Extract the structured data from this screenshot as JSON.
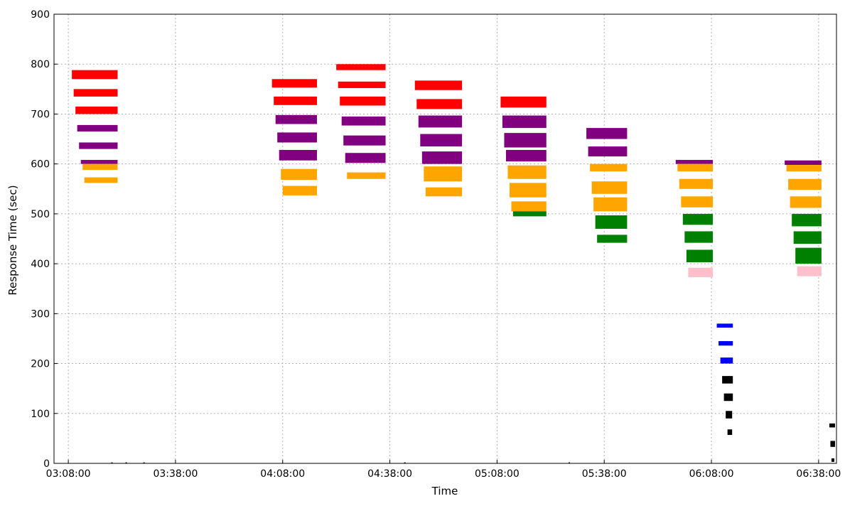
{
  "chart_data": {
    "type": "scatter",
    "title": "",
    "xlabel": "Time",
    "ylabel": "Response Time (sec)",
    "x_ticks": [
      "03:08:00",
      "03:38:00",
      "04:08:00",
      "04:38:00",
      "05:08:00",
      "05:38:00",
      "06:08:00",
      "06:38:00"
    ],
    "x_tick_minutes": [
      188,
      218,
      248,
      278,
      308,
      338,
      368,
      398
    ],
    "xlim_minutes": [
      184,
      403
    ],
    "y_ticks": [
      0,
      100,
      200,
      300,
      400,
      500,
      600,
      700,
      800,
      900
    ],
    "ylim": [
      0,
      900
    ],
    "grid": true,
    "legend": "none",
    "colors": {
      "red": "#ff0000",
      "purple": "#800080",
      "orange": "#ffa500",
      "green": "#008000",
      "pink": "#ffc0cb",
      "blue": "#0000ff",
      "black": "#000000"
    },
    "segments": [
      {
        "color": "red",
        "x0": 189.0,
        "x1": 201.8,
        "y0": 770,
        "y1": 788
      },
      {
        "color": "red",
        "x0": 189.5,
        "x1": 201.8,
        "y0": 735,
        "y1": 750
      },
      {
        "color": "red",
        "x0": 190.0,
        "x1": 201.8,
        "y0": 700,
        "y1": 715
      },
      {
        "color": "purple",
        "x0": 190.5,
        "x1": 201.8,
        "y0": 665,
        "y1": 678
      },
      {
        "color": "purple",
        "x0": 191.0,
        "x1": 201.8,
        "y0": 630,
        "y1": 643
      },
      {
        "color": "purple",
        "x0": 191.5,
        "x1": 201.8,
        "y0": 600,
        "y1": 608
      },
      {
        "color": "orange",
        "x0": 192.0,
        "x1": 201.8,
        "y0": 588,
        "y1": 600
      },
      {
        "color": "orange",
        "x0": 192.5,
        "x1": 201.8,
        "y0": 562,
        "y1": 573
      },
      {
        "color": "black",
        "x0": 200.0,
        "x1": 200.4,
        "y0": 0,
        "y1": 2
      },
      {
        "color": "black",
        "x0": 204.0,
        "x1": 204.4,
        "y0": 0,
        "y1": 2
      },
      {
        "color": "black",
        "x0": 209.0,
        "x1": 209.4,
        "y0": 0,
        "y1": 2
      },
      {
        "color": "red",
        "x0": 245.0,
        "x1": 257.6,
        "y0": 753,
        "y1": 770
      },
      {
        "color": "red",
        "x0": 245.5,
        "x1": 257.6,
        "y0": 718,
        "y1": 735
      },
      {
        "color": "purple",
        "x0": 246.0,
        "x1": 257.6,
        "y0": 680,
        "y1": 698
      },
      {
        "color": "purple",
        "x0": 246.5,
        "x1": 257.6,
        "y0": 643,
        "y1": 663
      },
      {
        "color": "purple",
        "x0": 247.0,
        "x1": 257.6,
        "y0": 607,
        "y1": 628
      },
      {
        "color": "orange",
        "x0": 247.5,
        "x1": 257.6,
        "y0": 568,
        "y1": 590
      },
      {
        "color": "orange",
        "x0": 248.0,
        "x1": 257.6,
        "y0": 537,
        "y1": 556
      },
      {
        "color": "red",
        "x0": 263.0,
        "x1": 276.8,
        "y0": 788,
        "y1": 800
      },
      {
        "color": "red",
        "x0": 263.5,
        "x1": 276.8,
        "y0": 752,
        "y1": 765
      },
      {
        "color": "red",
        "x0": 264.0,
        "x1": 276.8,
        "y0": 717,
        "y1": 735
      },
      {
        "color": "purple",
        "x0": 264.5,
        "x1": 276.8,
        "y0": 677,
        "y1": 695
      },
      {
        "color": "purple",
        "x0": 265.0,
        "x1": 276.8,
        "y0": 637,
        "y1": 657
      },
      {
        "color": "purple",
        "x0": 265.5,
        "x1": 276.8,
        "y0": 602,
        "y1": 622
      },
      {
        "color": "orange",
        "x0": 266.0,
        "x1": 276.8,
        "y0": 570,
        "y1": 583
      },
      {
        "color": "black",
        "x0": 282.0,
        "x1": 282.4,
        "y0": 0,
        "y1": 2
      },
      {
        "color": "red",
        "x0": 285.0,
        "x1": 298.2,
        "y0": 748,
        "y1": 767
      },
      {
        "color": "red",
        "x0": 285.5,
        "x1": 298.2,
        "y0": 710,
        "y1": 730
      },
      {
        "color": "purple",
        "x0": 286.0,
        "x1": 298.2,
        "y0": 673,
        "y1": 697
      },
      {
        "color": "purple",
        "x0": 286.5,
        "x1": 298.2,
        "y0": 635,
        "y1": 660
      },
      {
        "color": "purple",
        "x0": 287.0,
        "x1": 298.2,
        "y0": 600,
        "y1": 625
      },
      {
        "color": "orange",
        "x0": 287.5,
        "x1": 298.2,
        "y0": 565,
        "y1": 595
      },
      {
        "color": "orange",
        "x0": 288.0,
        "x1": 298.2,
        "y0": 535,
        "y1": 553
      },
      {
        "color": "red",
        "x0": 309.0,
        "x1": 321.8,
        "y0": 713,
        "y1": 735
      },
      {
        "color": "purple",
        "x0": 309.5,
        "x1": 321.8,
        "y0": 672,
        "y1": 697
      },
      {
        "color": "purple",
        "x0": 310.0,
        "x1": 321.8,
        "y0": 633,
        "y1": 662
      },
      {
        "color": "purple",
        "x0": 310.5,
        "x1": 321.8,
        "y0": 605,
        "y1": 628
      },
      {
        "color": "orange",
        "x0": 311.0,
        "x1": 321.8,
        "y0": 570,
        "y1": 597
      },
      {
        "color": "orange",
        "x0": 311.5,
        "x1": 321.8,
        "y0": 533,
        "y1": 562
      },
      {
        "color": "orange",
        "x0": 312.0,
        "x1": 321.8,
        "y0": 505,
        "y1": 525
      },
      {
        "color": "green",
        "x0": 312.5,
        "x1": 321.8,
        "y0": 495,
        "y1": 505
      },
      {
        "color": "black",
        "x0": 328.0,
        "x1": 328.4,
        "y0": 0,
        "y1": 2
      },
      {
        "color": "purple",
        "x0": 333.0,
        "x1": 344.4,
        "y0": 650,
        "y1": 672
      },
      {
        "color": "purple",
        "x0": 333.5,
        "x1": 344.4,
        "y0": 615,
        "y1": 635
      },
      {
        "color": "orange",
        "x0": 334.0,
        "x1": 344.4,
        "y0": 585,
        "y1": 600
      },
      {
        "color": "orange",
        "x0": 334.5,
        "x1": 344.4,
        "y0": 540,
        "y1": 565
      },
      {
        "color": "orange",
        "x0": 335.0,
        "x1": 344.4,
        "y0": 505,
        "y1": 533
      },
      {
        "color": "green",
        "x0": 335.5,
        "x1": 344.4,
        "y0": 470,
        "y1": 497
      },
      {
        "color": "green",
        "x0": 336.0,
        "x1": 344.4,
        "y0": 442,
        "y1": 458
      },
      {
        "color": "purple",
        "x0": 358.0,
        "x1": 368.4,
        "y0": 600,
        "y1": 608
      },
      {
        "color": "orange",
        "x0": 358.5,
        "x1": 368.4,
        "y0": 585,
        "y1": 600
      },
      {
        "color": "orange",
        "x0": 359.0,
        "x1": 368.4,
        "y0": 550,
        "y1": 570
      },
      {
        "color": "orange",
        "x0": 359.5,
        "x1": 368.4,
        "y0": 513,
        "y1": 535
      },
      {
        "color": "green",
        "x0": 360.0,
        "x1": 368.4,
        "y0": 478,
        "y1": 500
      },
      {
        "color": "green",
        "x0": 360.5,
        "x1": 368.4,
        "y0": 442,
        "y1": 465
      },
      {
        "color": "green",
        "x0": 361.0,
        "x1": 368.4,
        "y0": 403,
        "y1": 428
      },
      {
        "color": "pink",
        "x0": 361.5,
        "x1": 368.4,
        "y0": 373,
        "y1": 392
      },
      {
        "color": "blue",
        "x0": 369.5,
        "x1": 374.0,
        "y0": 272,
        "y1": 280
      },
      {
        "color": "blue",
        "x0": 370.0,
        "x1": 374.0,
        "y0": 236,
        "y1": 245
      },
      {
        "color": "blue",
        "x0": 370.5,
        "x1": 374.0,
        "y0": 200,
        "y1": 212
      },
      {
        "color": "black",
        "x0": 371.0,
        "x1": 374.0,
        "y0": 160,
        "y1": 175
      },
      {
        "color": "black",
        "x0": 371.5,
        "x1": 374.0,
        "y0": 125,
        "y1": 140
      },
      {
        "color": "black",
        "x0": 372.0,
        "x1": 373.8,
        "y0": 90,
        "y1": 105
      },
      {
        "color": "black",
        "x0": 372.5,
        "x1": 373.8,
        "y0": 57,
        "y1": 68
      },
      {
        "color": "purple",
        "x0": 388.5,
        "x1": 398.8,
        "y0": 598,
        "y1": 607
      },
      {
        "color": "orange",
        "x0": 389.0,
        "x1": 398.8,
        "y0": 585,
        "y1": 598
      },
      {
        "color": "orange",
        "x0": 389.5,
        "x1": 398.8,
        "y0": 548,
        "y1": 570
      },
      {
        "color": "orange",
        "x0": 390.0,
        "x1": 398.8,
        "y0": 512,
        "y1": 535
      },
      {
        "color": "green",
        "x0": 390.5,
        "x1": 398.8,
        "y0": 475,
        "y1": 500
      },
      {
        "color": "green",
        "x0": 391.0,
        "x1": 398.8,
        "y0": 440,
        "y1": 465
      },
      {
        "color": "green",
        "x0": 391.5,
        "x1": 398.8,
        "y0": 400,
        "y1": 432
      },
      {
        "color": "pink",
        "x0": 392.0,
        "x1": 398.8,
        "y0": 375,
        "y1": 395
      },
      {
        "color": "black",
        "x0": 401.0,
        "x1": 402.6,
        "y0": 72,
        "y1": 80
      },
      {
        "color": "black",
        "x0": 401.3,
        "x1": 402.6,
        "y0": 33,
        "y1": 45
      },
      {
        "color": "black",
        "x0": 401.6,
        "x1": 402.4,
        "y0": 3,
        "y1": 10
      }
    ]
  }
}
